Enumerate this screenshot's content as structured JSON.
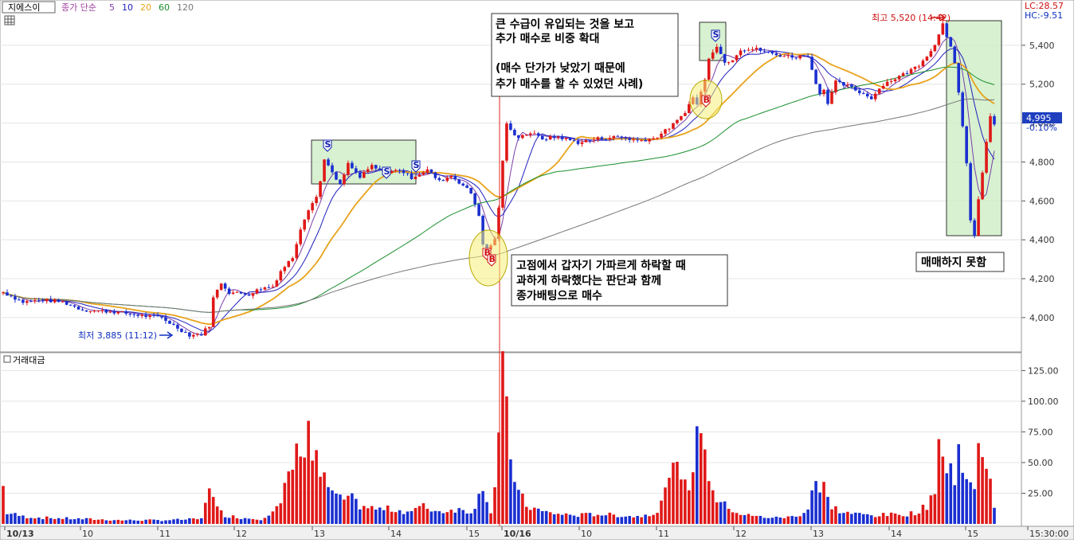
{
  "header": {
    "stock_name": "지에스이",
    "ma_label": "종가 단순",
    "ma_periods": [
      "5",
      "10",
      "20",
      "60",
      "120"
    ],
    "ma_colors": [
      "#7b3fa8",
      "#1f1fbf",
      "#e8a21b",
      "#1a8f2e",
      "#777777"
    ],
    "lc": "LC:28.57",
    "hc": "HC:-9.51"
  },
  "volume_panel": {
    "title": "거래대금"
  },
  "chart_data": {
    "type": "candlestick",
    "price_axis": {
      "ticks": [
        4000,
        4200,
        4400,
        4600,
        4800,
        5000,
        5200,
        5400
      ],
      "labels": [
        "4,000",
        "4,200",
        "4,400",
        "4,600",
        "4,800",
        "5,000",
        "5,200",
        "5,400"
      ],
      "range": [
        3840,
        5600
      ]
    },
    "volume_axis": {
      "ticks": [
        25,
        50,
        75,
        100,
        125
      ],
      "labels": [
        "25.00",
        "50.00",
        "75.00",
        "100.00",
        "125.00"
      ],
      "range": [
        0,
        135
      ]
    },
    "x_labels": [
      "10/13",
      "10",
      "11",
      "12",
      "13",
      "14",
      "15",
      "10/16",
      "10",
      "11",
      "12",
      "13",
      "14",
      "15",
      "15:30:00"
    ],
    "current_price": {
      "value": 4995,
      "label": "4,995",
      "change": "-0.10%"
    },
    "high_marker": {
      "label": "최고 5,520 (14:42)",
      "value": 5520
    },
    "low_marker": {
      "label": "최저 3,885 (11:12)",
      "value": 3885
    },
    "keyframes": [
      [
        0,
        4130
      ],
      [
        5,
        4080
      ],
      [
        10,
        4090
      ],
      [
        15,
        4080
      ],
      [
        20,
        4040
      ],
      [
        28,
        4030
      ],
      [
        35,
        4010
      ],
      [
        40,
        4000
      ],
      [
        43,
        3960
      ],
      [
        47,
        3910
      ],
      [
        50,
        3915
      ],
      [
        52,
        3960
      ],
      [
        53,
        4100
      ],
      [
        55,
        4180
      ],
      [
        57,
        4130
      ],
      [
        62,
        4120
      ],
      [
        65,
        4150
      ],
      [
        68,
        4160
      ],
      [
        70,
        4240
      ],
      [
        73,
        4310
      ],
      [
        75,
        4460
      ],
      [
        77,
        4560
      ],
      [
        79,
        4620
      ],
      [
        80,
        4700
      ],
      [
        81,
        4820
      ],
      [
        83,
        4740
      ],
      [
        85,
        4680
      ],
      [
        87,
        4790
      ],
      [
        90,
        4720
      ],
      [
        93,
        4780
      ],
      [
        96,
        4740
      ],
      [
        100,
        4760
      ],
      [
        103,
        4720
      ],
      [
        107,
        4760
      ],
      [
        110,
        4700
      ],
      [
        113,
        4730
      ],
      [
        116,
        4680
      ],
      [
        118,
        4640
      ],
      [
        120,
        4530
      ],
      [
        121,
        4370
      ],
      [
        122,
        4350
      ],
      [
        124,
        4400
      ],
      [
        125,
        4570
      ],
      [
        126,
        4800
      ],
      [
        127,
        5000
      ],
      [
        128,
        4960
      ],
      [
        130,
        4930
      ],
      [
        133,
        4950
      ],
      [
        136,
        4920
      ],
      [
        140,
        4930
      ],
      [
        145,
        4900
      ],
      [
        150,
        4920
      ],
      [
        155,
        4930
      ],
      [
        160,
        4910
      ],
      [
        164,
        4920
      ],
      [
        167,
        4960
      ],
      [
        170,
        5010
      ],
      [
        172,
        5060
      ],
      [
        174,
        5130
      ],
      [
        175,
        5100
      ],
      [
        177,
        5220
      ],
      [
        178,
        5340
      ],
      [
        180,
        5400
      ],
      [
        182,
        5310
      ],
      [
        184,
        5330
      ],
      [
        186,
        5380
      ],
      [
        190,
        5380
      ],
      [
        195,
        5350
      ],
      [
        200,
        5340
      ],
      [
        203,
        5350
      ],
      [
        204,
        5270
      ],
      [
        206,
        5150
      ],
      [
        207,
        5180
      ],
      [
        208,
        5100
      ],
      [
        210,
        5210
      ],
      [
        213,
        5190
      ],
      [
        216,
        5160
      ],
      [
        219,
        5130
      ],
      [
        222,
        5200
      ],
      [
        225,
        5230
      ],
      [
        228,
        5260
      ],
      [
        231,
        5300
      ],
      [
        233,
        5350
      ],
      [
        235,
        5400
      ],
      [
        236,
        5460
      ],
      [
        237,
        5520
      ],
      [
        238,
        5450
      ],
      [
        239,
        5390
      ],
      [
        240,
        5300
      ],
      [
        241,
        5150
      ],
      [
        242,
        4980
      ],
      [
        243,
        4800
      ],
      [
        244,
        4500
      ],
      [
        245,
        4420
      ],
      [
        246,
        4600
      ],
      [
        247,
        4750
      ],
      [
        248,
        4900
      ],
      [
        249,
        5030
      ],
      [
        250,
        4995
      ]
    ],
    "volume_keyframes": [
      [
        0,
        30
      ],
      [
        1,
        9
      ],
      [
        5,
        6
      ],
      [
        10,
        5
      ],
      [
        20,
        4
      ],
      [
        30,
        3
      ],
      [
        40,
        3
      ],
      [
        50,
        4
      ],
      [
        52,
        35
      ],
      [
        53,
        20
      ],
      [
        54,
        12
      ],
      [
        56,
        7
      ],
      [
        60,
        5
      ],
      [
        65,
        4
      ],
      [
        70,
        15
      ],
      [
        72,
        40
      ],
      [
        74,
        55
      ],
      [
        75,
        70
      ],
      [
        76,
        60
      ],
      [
        77,
        80
      ],
      [
        78,
        55
      ],
      [
        79,
        50
      ],
      [
        80,
        40
      ],
      [
        81,
        35
      ],
      [
        82,
        30
      ],
      [
        83,
        25
      ],
      [
        84,
        20
      ],
      [
        85,
        25
      ],
      [
        86,
        18
      ],
      [
        88,
        20
      ],
      [
        90,
        15
      ],
      [
        94,
        12
      ],
      [
        98,
        12
      ],
      [
        102,
        10
      ],
      [
        106,
        14
      ],
      [
        110,
        10
      ],
      [
        114,
        12
      ],
      [
        118,
        10
      ],
      [
        120,
        22
      ],
      [
        121,
        35
      ],
      [
        122,
        20
      ],
      [
        123,
        10
      ],
      [
        124,
        30
      ],
      [
        125,
        70
      ],
      [
        126,
        115
      ],
      [
        127,
        85
      ],
      [
        128,
        55
      ],
      [
        129,
        40
      ],
      [
        130,
        25
      ],
      [
        132,
        15
      ],
      [
        136,
        10
      ],
      [
        140,
        8
      ],
      [
        145,
        7
      ],
      [
        150,
        8
      ],
      [
        160,
        6
      ],
      [
        165,
        10
      ],
      [
        167,
        25
      ],
      [
        168,
        50
      ],
      [
        169,
        40
      ],
      [
        170,
        45
      ],
      [
        171,
        30
      ],
      [
        172,
        40
      ],
      [
        173,
        35
      ],
      [
        174,
        45
      ],
      [
        175,
        65
      ],
      [
        176,
        90
      ],
      [
        177,
        55
      ],
      [
        178,
        40
      ],
      [
        179,
        30
      ],
      [
        180,
        20
      ],
      [
        182,
        15
      ],
      [
        186,
        8
      ],
      [
        190,
        6
      ],
      [
        195,
        5
      ],
      [
        200,
        6
      ],
      [
        203,
        12
      ],
      [
        204,
        30
      ],
      [
        205,
        35
      ],
      [
        206,
        25
      ],
      [
        207,
        30
      ],
      [
        208,
        20
      ],
      [
        209,
        15
      ],
      [
        211,
        10
      ],
      [
        215,
        8
      ],
      [
        220,
        7
      ],
      [
        228,
        8
      ],
      [
        231,
        10
      ],
      [
        233,
        15
      ],
      [
        235,
        30
      ],
      [
        236,
        70
      ],
      [
        237,
        55
      ],
      [
        238,
        40
      ],
      [
        239,
        45
      ],
      [
        240,
        35
      ],
      [
        241,
        60
      ],
      [
        242,
        55
      ],
      [
        243,
        40
      ],
      [
        244,
        30
      ],
      [
        245,
        25
      ],
      [
        246,
        55
      ],
      [
        247,
        65
      ],
      [
        248,
        50
      ],
      [
        249,
        40
      ],
      [
        250,
        15
      ]
    ]
  },
  "annotations": {
    "note1": [
      "큰 수급이 유입되는 것을 보고",
      "추가 매수로 비중 확대",
      "",
      "(매수 단가가 낮았기 때문에",
      "추가 매수를 할 수 있었던 사례)"
    ],
    "note2": [
      "고점에서 갑자기 가파르게 하락할 때",
      "과하게 하락했다는 판단과 함께",
      "종가배팅으로 매수"
    ],
    "note3": "매매하지 못함",
    "buy_marker": "B",
    "sell_marker": "S"
  }
}
